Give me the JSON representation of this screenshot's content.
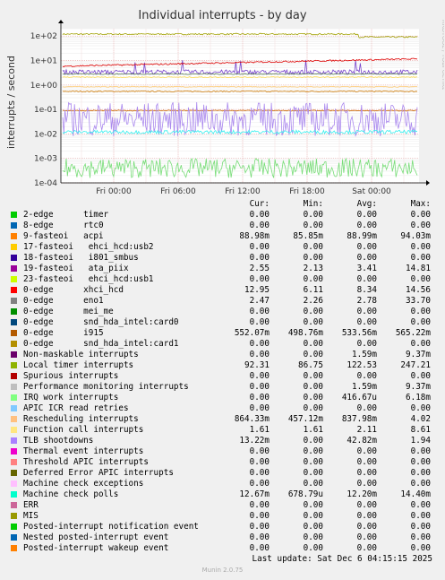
{
  "chart_data": {
    "type": "line",
    "title": "Individual interrupts - by day",
    "ylabel": "interrupts / second",
    "yscale": "log",
    "ylim": [
      0.0001,
      200
    ],
    "ytick_labels": [
      "1e+02",
      "1e+01",
      "1e+00",
      "1e-01",
      "1e-02",
      "1e-03",
      "1e-04"
    ],
    "xtick_labels": [
      "Fri 00:00",
      "Fri 06:00",
      "Fri 12:00",
      "Fri 18:00",
      "Sat 00:00"
    ],
    "grid": true,
    "series": [
      {
        "name": "Local timer interrupts",
        "approx_level": 120,
        "color": "#a0a000",
        "pattern": "flat_drop_after_sat"
      },
      {
        "name": "0-edge i915",
        "approx_level": 0.55,
        "color": "#cc7700",
        "pattern": "flat"
      },
      {
        "name": "Rescheduling interrupts",
        "approx_level": 0.85,
        "color": "#ffcc77",
        "pattern": "flat"
      },
      {
        "name": "19-fasteoi ata_piix",
        "approx_level": 3.4,
        "color": "#7744cc",
        "pattern": "noisy"
      },
      {
        "name": "9-fasteoi acpi",
        "approx_level": 0.09,
        "color": "#cc6600",
        "pattern": "flat"
      },
      {
        "name": "0-edge xhci_hcd",
        "approx_level": 8.3,
        "color": "#dd0000",
        "pattern": "rising"
      },
      {
        "name": "0-edge eno1",
        "approx_level": 2.8,
        "color": "#557755",
        "pattern": "flat"
      },
      {
        "name": "Function call interrupts",
        "approx_level": 2.1,
        "color": "#ffdd55",
        "pattern": "flat"
      },
      {
        "name": "TLB shootdowns",
        "approx_level": 0.04,
        "color": "#aa88ee",
        "pattern": "spiky"
      },
      {
        "name": "Machine check polls",
        "approx_level": 0.012,
        "color": "#33eeee",
        "pattern": "band"
      },
      {
        "name": "IRQ work interrupts",
        "approx_level": 0.0004,
        "color": "#77dd77",
        "pattern": "spiky_low"
      }
    ]
  },
  "legend": {
    "headers": [
      "Cur:",
      "Min:",
      "Avg:",
      "Max:"
    ],
    "rows": [
      {
        "label": "2-edge      timer",
        "color": "#00cc00",
        "cur": "0.00",
        "min": "0.00",
        "avg": "0.00",
        "max": "0.00"
      },
      {
        "label": "8-edge      rtc0",
        "color": "#0066b3",
        "cur": "0.00",
        "min": "0.00",
        "avg": "0.00",
        "max": "0.00"
      },
      {
        "label": "9-fasteoi   acpi",
        "color": "#ff8000",
        "cur": "88.98m",
        "min": "85.85m",
        "avg": "88.99m",
        "max": "94.03m"
      },
      {
        "label": "17-fasteoi   ehci_hcd:usb2",
        "color": "#ffcc00",
        "cur": "0.00",
        "min": "0.00",
        "avg": "0.00",
        "max": "0.00"
      },
      {
        "label": "18-fasteoi   i801_smbus",
        "color": "#330099",
        "cur": "0.00",
        "min": "0.00",
        "avg": "0.00",
        "max": "0.00"
      },
      {
        "label": "19-fasteoi   ata_piix",
        "color": "#990099",
        "cur": "2.55",
        "min": "2.13",
        "avg": "3.41",
        "max": "14.81"
      },
      {
        "label": "23-fasteoi   ehci_hcd:usb1",
        "color": "#ccff00",
        "cur": "0.00",
        "min": "0.00",
        "avg": "0.00",
        "max": "0.00"
      },
      {
        "label": "0-edge      xhci_hcd",
        "color": "#ff0000",
        "cur": "12.95",
        "min": "6.11",
        "avg": "8.34",
        "max": "14.56"
      },
      {
        "label": "0-edge      eno1",
        "color": "#808080",
        "cur": "2.47",
        "min": "2.26",
        "avg": "2.78",
        "max": "33.70"
      },
      {
        "label": "0-edge      mei_me",
        "color": "#008f00",
        "cur": "0.00",
        "min": "0.00",
        "avg": "0.00",
        "max": "0.00"
      },
      {
        "label": "0-edge      snd_hda_intel:card0",
        "color": "#00487d",
        "cur": "0.00",
        "min": "0.00",
        "avg": "0.00",
        "max": "0.00"
      },
      {
        "label": "0-edge      i915",
        "color": "#b35a00",
        "cur": "552.07m",
        "min": "498.76m",
        "avg": "533.56m",
        "max": "565.22m"
      },
      {
        "label": "0-edge      snd_hda_intel:card1",
        "color": "#b38f00",
        "cur": "0.00",
        "min": "0.00",
        "avg": "0.00",
        "max": "0.00"
      },
      {
        "label": "Non-maskable interrupts",
        "color": "#6b006b",
        "cur": "0.00",
        "min": "0.00",
        "avg": "1.59m",
        "max": "9.37m"
      },
      {
        "label": "Local timer interrupts",
        "color": "#8fb300",
        "cur": "92.31",
        "min": "86.75",
        "avg": "122.53",
        "max": "247.21"
      },
      {
        "label": "Spurious interrupts",
        "color": "#b30000",
        "cur": "0.00",
        "min": "0.00",
        "avg": "0.00",
        "max": "0.00"
      },
      {
        "label": "Performance monitoring interrupts",
        "color": "#bebebe",
        "cur": "0.00",
        "min": "0.00",
        "avg": "1.59m",
        "max": "9.37m"
      },
      {
        "label": "IRQ work interrupts",
        "color": "#80ff80",
        "cur": "0.00",
        "min": "0.00",
        "avg": "416.67u",
        "max": "6.18m"
      },
      {
        "label": "APIC ICR read retries",
        "color": "#80c9ff",
        "cur": "0.00",
        "min": "0.00",
        "avg": "0.00",
        "max": "0.00"
      },
      {
        "label": "Rescheduling interrupts",
        "color": "#ffc080",
        "cur": "864.33m",
        "min": "457.12m",
        "avg": "837.98m",
        "max": "4.02"
      },
      {
        "label": "Function call interrupts",
        "color": "#ffe680",
        "cur": "1.61",
        "min": "1.61",
        "avg": "2.11",
        "max": "8.61"
      },
      {
        "label": "TLB shootdowns",
        "color": "#aa80ff",
        "cur": "13.22m",
        "min": "0.00",
        "avg": "42.82m",
        "max": "1.94"
      },
      {
        "label": "Thermal event interrupts",
        "color": "#ee00cc",
        "cur": "0.00",
        "min": "0.00",
        "avg": "0.00",
        "max": "0.00"
      },
      {
        "label": "Threshold APIC interrupts",
        "color": "#ff8080",
        "cur": "0.00",
        "min": "0.00",
        "avg": "0.00",
        "max": "0.00"
      },
      {
        "label": "Deferred Error APIC interrupts",
        "color": "#666600",
        "cur": "0.00",
        "min": "0.00",
        "avg": "0.00",
        "max": "0.00"
      },
      {
        "label": "Machine check exceptions",
        "color": "#ffbfff",
        "cur": "0.00",
        "min": "0.00",
        "avg": "0.00",
        "max": "0.00"
      },
      {
        "label": "Machine check polls",
        "color": "#00ffcc",
        "cur": "12.67m",
        "min": "678.79u",
        "avg": "12.20m",
        "max": "14.40m"
      },
      {
        "label": "ERR",
        "color": "#cc6699",
        "cur": "0.00",
        "min": "0.00",
        "avg": "0.00",
        "max": "0.00"
      },
      {
        "label": "MIS",
        "color": "#999900",
        "cur": "0.00",
        "min": "0.00",
        "avg": "0.00",
        "max": "0.00"
      },
      {
        "label": "Posted-interrupt notification event",
        "color": "#00cc00",
        "cur": "0.00",
        "min": "0.00",
        "avg": "0.00",
        "max": "0.00"
      },
      {
        "label": "Nested posted-interrupt event",
        "color": "#0066b3",
        "cur": "0.00",
        "min": "0.00",
        "avg": "0.00",
        "max": "0.00"
      },
      {
        "label": "Posted-interrupt wakeup event",
        "color": "#ff8000",
        "cur": "0.00",
        "min": "0.00",
        "avg": "0.00",
        "max": "0.00"
      }
    ]
  },
  "last_update": "Last update: Sat Dec  6 04:15:15 2025",
  "footer": "Munin 2.0.75",
  "watermark": "RRDTOOL / TOBI OETIKER"
}
